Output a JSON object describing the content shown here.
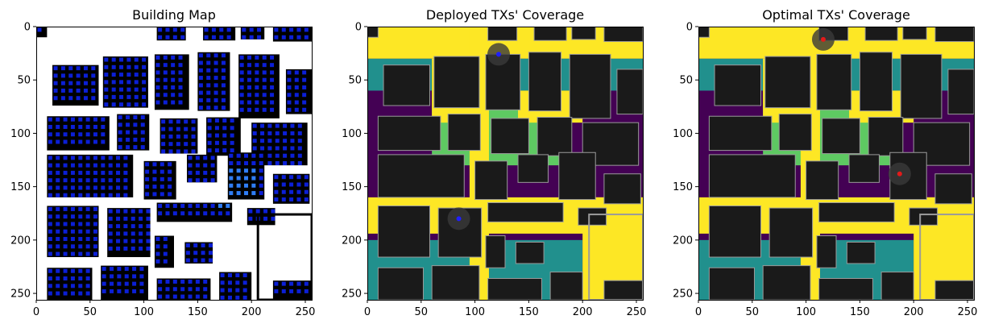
{
  "colors": {
    "viridis": [
      "#440154",
      "#21908d",
      "#5ec962",
      "#fde725"
    ],
    "building": "#1a1a1a",
    "building_edge": "#9a9a9a",
    "building_map_bg": "#ffffff",
    "grid_point_dark": "#0b1fd6",
    "grid_point_light": "#2f7df5",
    "deployed_tx": "#1f1fff",
    "optimal_tx": "#e21a1a"
  },
  "chart_data": [
    {
      "type": "heatmap",
      "title": "Building Map",
      "x_ticks": [
        "0",
        "50",
        "100",
        "150",
        "200",
        "250"
      ],
      "y_ticks": [
        "0",
        "50",
        "100",
        "150",
        "200",
        "250"
      ],
      "x_range": [
        0,
        256
      ],
      "y_range": [
        256,
        0
      ],
      "grid": false
    },
    {
      "type": "heatmap",
      "title": "Deployed TXs' Coverage",
      "x_ticks": [
        "0",
        "50",
        "100",
        "150",
        "200",
        "250"
      ],
      "y_ticks": [
        "0",
        "50",
        "100",
        "150",
        "200",
        "250"
      ],
      "x_range": [
        0,
        256
      ],
      "y_range": [
        256,
        0
      ],
      "grid": false,
      "transmitters": [
        {
          "x": 85,
          "y": 180
        },
        {
          "x": 122,
          "y": 26
        }
      ]
    },
    {
      "type": "heatmap",
      "title": "Optimal TXs' Coverage",
      "x_ticks": [
        "0",
        "50",
        "100",
        "150",
        "200",
        "250"
      ],
      "y_ticks": [
        "0",
        "50",
        "100",
        "150",
        "200",
        "250"
      ],
      "x_range": [
        0,
        256
      ],
      "y_range": [
        256,
        0
      ],
      "grid": false,
      "transmitters": [
        {
          "x": 116,
          "y": 12
        },
        {
          "x": 187,
          "y": 138
        }
      ]
    }
  ]
}
